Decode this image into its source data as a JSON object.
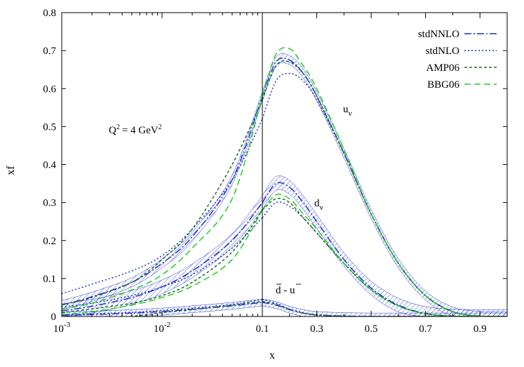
{
  "chart_data": {
    "type": "line",
    "ylabel": "xf",
    "xlabel": "x",
    "ylim": [
      0,
      0.8
    ],
    "grid": false,
    "legend_position": "top-right",
    "annotations": {
      "scale": "Q",
      "scale_text": "= 4 GeV",
      "uv": "u",
      "uv_sub": "v",
      "dv": "d",
      "dv_sub": "v",
      "sea": "d - u"
    },
    "x_axis": {
      "left_panel": {
        "scale": "log",
        "range": [
          0.001,
          0.1
        ],
        "tick_bases": [
          "10",
          "10"
        ],
        "tick_exps": [
          "-3",
          "-2"
        ]
      },
      "right_panel": {
        "scale": "linear",
        "range": [
          0.1,
          1.0
        ],
        "tick_labels": [
          "0.1",
          "0.3",
          "0.5",
          "0.7",
          "0.9"
        ]
      }
    },
    "y_ticks": [
      "0",
      "0.1",
      "0.2",
      "0.3",
      "0.4",
      "0.5",
      "0.6",
      "0.7",
      "0.8"
    ],
    "x": [
      0.001,
      0.002,
      0.005,
      0.01,
      0.02,
      0.05,
      0.1,
      0.15,
      0.2,
      0.25,
      0.3,
      0.4,
      0.5,
      0.6,
      0.7,
      0.8,
      0.9,
      1.0
    ],
    "series": [
      {
        "name": "stdNNLO",
        "color": "#1f2fcf",
        "dash": "10,3,2,3",
        "curves": {
          "uv": [
            0.03,
            0.052,
            0.09,
            0.14,
            0.21,
            0.36,
            0.58,
            0.67,
            0.675,
            0.64,
            0.58,
            0.43,
            0.27,
            0.14,
            0.055,
            0.013,
            0.001,
            0
          ],
          "dv": [
            0.015,
            0.027,
            0.05,
            0.078,
            0.12,
            0.2,
            0.3,
            0.35,
            0.34,
            0.3,
            0.25,
            0.15,
            0.075,
            0.03,
            0.008,
            0.001,
            0,
            0
          ],
          "sea": [
            0.003,
            0.005,
            0.009,
            0.013,
            0.019,
            0.028,
            0.037,
            0.03,
            0.018,
            0.009,
            0.004,
            0.001,
            0,
            0,
            0,
            0,
            0,
            0
          ]
        },
        "band": {
          "uv": 0.012,
          "dv": 0.018,
          "sea": 0.009
        }
      },
      {
        "name": "stdNLO",
        "color": "#1f2fcf",
        "dash": "2,3",
        "curves": {
          "uv": [
            0.06,
            0.085,
            0.12,
            0.16,
            0.23,
            0.36,
            0.52,
            0.62,
            0.64,
            0.62,
            0.57,
            0.43,
            0.27,
            0.14,
            0.054,
            0.012,
            0.001,
            0
          ],
          "dv": [
            0.025,
            0.035,
            0.055,
            0.078,
            0.11,
            0.18,
            0.26,
            0.3,
            0.29,
            0.26,
            0.22,
            0.14,
            0.07,
            0.028,
            0.007,
            0.001,
            0,
            0
          ],
          "sea": [
            0.004,
            0.007,
            0.011,
            0.016,
            0.022,
            0.032,
            0.045,
            0.035,
            0.02,
            0.01,
            0.005,
            0.001,
            0,
            0,
            0,
            0,
            0,
            0
          ]
        }
      },
      {
        "name": "AMP06",
        "color": "#1e6e1e",
        "dash": "4,3",
        "curves": {
          "uv": [
            0.03,
            0.05,
            0.09,
            0.15,
            0.23,
            0.4,
            0.57,
            0.66,
            0.67,
            0.64,
            0.58,
            0.43,
            0.27,
            0.14,
            0.055,
            0.013,
            0.001,
            0
          ],
          "dv": [
            0.01,
            0.02,
            0.035,
            0.055,
            0.09,
            0.17,
            0.28,
            0.31,
            0.3,
            0.26,
            0.22,
            0.14,
            0.07,
            0.028,
            0.007,
            0.001,
            0,
            0
          ],
          "sea": [
            -0.02,
            -0.01,
            0.0,
            0.01,
            0.018,
            0.03,
            0.04,
            0.032,
            0.018,
            0.009,
            0.004,
            0.001,
            0,
            0,
            0,
            0,
            0,
            0
          ]
        }
      },
      {
        "name": "BBG06",
        "color": "#22cc22",
        "dash": "9,5",
        "curves": {
          "uv": [
            0.02,
            0.035,
            0.07,
            0.11,
            0.18,
            0.31,
            0.58,
            0.69,
            0.705,
            0.66,
            0.6,
            0.44,
            0.27,
            0.14,
            0.055,
            0.013,
            0.001,
            0
          ],
          "dv": [
            0.005,
            0.012,
            0.03,
            0.05,
            0.08,
            0.15,
            0.28,
            0.32,
            0.31,
            0.27,
            0.23,
            0.14,
            0.07,
            0.028,
            0.007,
            0.001,
            0,
            0
          ]
        }
      }
    ]
  }
}
